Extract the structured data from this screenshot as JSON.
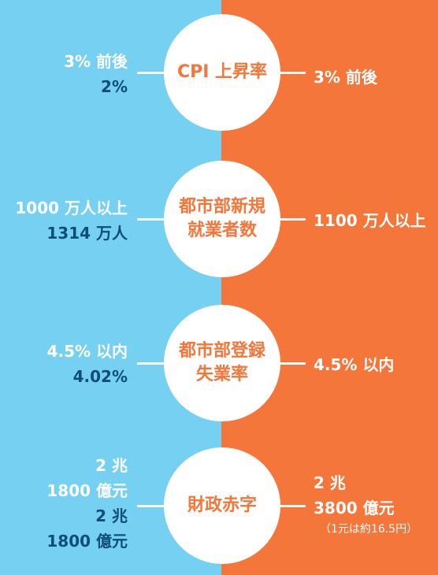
{
  "rows": [
    {
      "label_lines": [
        "CPI 上昇率"
      ],
      "left_target": [
        "3% 前後"
      ],
      "left_actual": [
        "2%"
      ],
      "right": [
        "3% 前後"
      ]
    },
    {
      "label_lines": [
        "都市部新規",
        "就業者数"
      ],
      "left_target": [
        "1000 万人以上"
      ],
      "left_actual": [
        "1314 万人"
      ],
      "right": [
        "1100 万人以上"
      ]
    },
    {
      "label_lines": [
        "都市部登録",
        "失業率"
      ],
      "left_target": [
        "4.5% 以内"
      ],
      "left_actual": [
        "4.02%"
      ],
      "right": [
        "4.5% 以内"
      ]
    },
    {
      "label_lines": [
        "財政赤字"
      ],
      "left_target": [
        "2 兆",
        "1800 億元"
      ],
      "left_actual": [
        "2 兆",
        "1800 億元"
      ],
      "right": [
        "2 兆",
        "3800 億元"
      ],
      "right_note": "（1元は約16.5円）"
    }
  ],
  "colors": {
    "left_bg": "#76d0f2",
    "right_bg": "#f4763a",
    "label": "#f4763a",
    "actual_text": "#0e4c7a",
    "target_text": "#ffffff"
  }
}
